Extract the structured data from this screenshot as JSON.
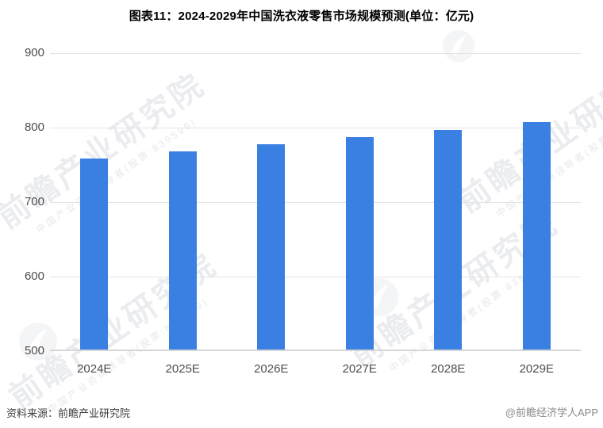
{
  "title": "图表11：2024-2029年中国洗衣液零售市场规模预测(单位：亿元)",
  "chart_data": {
    "type": "bar",
    "title": "图表11：2024-2029年中国洗衣液零售市场规模预测(单位：亿元)",
    "categories": [
      "2024E",
      "2025E",
      "2026E",
      "2027E",
      "2028E",
      "2029E"
    ],
    "values": [
      758,
      768,
      778,
      787,
      797,
      807
    ],
    "xlabel": "",
    "ylabel": "亿元",
    "ylim": [
      500,
      900
    ],
    "yticks": [
      500,
      600,
      700,
      800,
      900
    ],
    "grid": true,
    "legend": "none",
    "bar_color": "#3a80e2"
  },
  "watermark": {
    "brand_text": "前瞻产业研究院",
    "brand_subtext": "中国产业咨询领导者(股票:839599)",
    "logo_name": "qianzhan-logo"
  },
  "footer": {
    "source": "资料来源：前瞻产业研究院",
    "credit": "@前瞻经济学人APP"
  },
  "colors": {
    "bar": "#3a80e2",
    "grid": "#e4e4e4",
    "axis_line": "#d6d6d6",
    "tick_label": "#4d4d4d",
    "title": "#000000",
    "footer_source": "#3d3d3d",
    "footer_credit": "#8a8a8a",
    "watermark": "#c8ccd5"
  }
}
